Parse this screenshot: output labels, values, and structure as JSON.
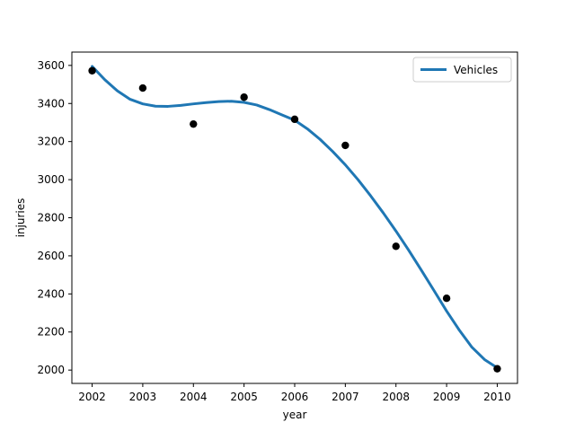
{
  "chart_data": {
    "type": "scatter",
    "title": "",
    "xlabel": "year",
    "ylabel": "injuries",
    "xlim": [
      2001.6,
      2010.4
    ],
    "ylim": [
      1930,
      3670
    ],
    "x_ticks": [
      2002,
      2003,
      2004,
      2005,
      2006,
      2007,
      2008,
      2009,
      2010
    ],
    "y_ticks": [
      2000,
      2200,
      2400,
      2600,
      2800,
      3000,
      3200,
      3400,
      3600
    ],
    "grid": false,
    "legend_position": "top-right",
    "points": {
      "color": "#000000",
      "x": [
        2002,
        2003,
        2004,
        2005,
        2006,
        2007,
        2008,
        2009,
        2010
      ],
      "y": [
        3572,
        3481,
        3292,
        3433,
        3317,
        3180,
        2650,
        2377,
        2007
      ]
    },
    "series": [
      {
        "name": "Vehicles",
        "color": "#1f77b4",
        "x": [
          2002.0,
          2002.25,
          2002.5,
          2002.75,
          2003.0,
          2003.25,
          2003.5,
          2003.75,
          2004.0,
          2004.25,
          2004.5,
          2004.75,
          2005.0,
          2005.25,
          2005.5,
          2005.75,
          2006.0,
          2006.25,
          2006.5,
          2006.75,
          2007.0,
          2007.25,
          2007.5,
          2007.75,
          2008.0,
          2008.25,
          2008.5,
          2008.75,
          2009.0,
          2009.25,
          2009.5,
          2009.75,
          2010.0
        ],
        "y": [
          3595,
          3525,
          3466,
          3422,
          3398,
          3386,
          3385,
          3390,
          3398,
          3405,
          3410,
          3412,
          3406,
          3392,
          3368,
          3340,
          3312,
          3267,
          3212,
          3148,
          3078,
          3000,
          2915,
          2825,
          2730,
          2630,
          2525,
          2418,
          2310,
          2210,
          2120,
          2055,
          2012
        ]
      }
    ]
  }
}
